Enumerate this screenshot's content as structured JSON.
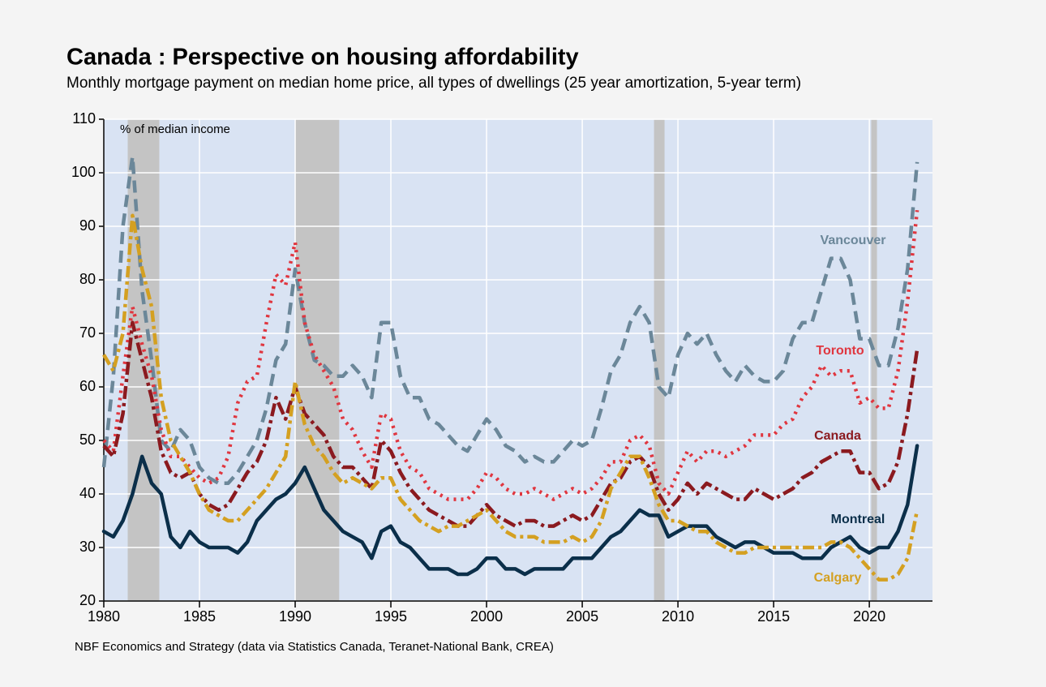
{
  "chart_data": {
    "type": "line",
    "title": "Canada : Perspective on housing affordability",
    "subtitle": "Monthly mortgage payment on median home price, all types of dwellings (25 year amortization, 5-year term)",
    "y_axis_label": "% of median income",
    "source": "NBF Economics and Strategy (data via Statistics Canada, Teranet-National Bank, CREA)",
    "xlim": [
      1980,
      2023.3
    ],
    "ylim": [
      20,
      110
    ],
    "xticks": [
      1980,
      1985,
      1990,
      1995,
      2000,
      2005,
      2010,
      2015,
      2020
    ],
    "yticks": [
      20,
      30,
      40,
      50,
      60,
      70,
      80,
      90,
      100,
      110
    ],
    "grid": true,
    "shaded_periods": [
      [
        1981.25,
        1982.9
      ],
      [
        1990.0,
        1992.3
      ],
      [
        2008.75,
        2009.3
      ],
      [
        2020.1,
        2020.4
      ]
    ],
    "x": [
      1980,
      1980.5,
      1981,
      1981.5,
      1982,
      1982.5,
      1983,
      1983.5,
      1984,
      1984.5,
      1985,
      1985.5,
      1986,
      1986.5,
      1987,
      1987.5,
      1988,
      1988.5,
      1989,
      1989.5,
      1990,
      1990.5,
      1991,
      1991.5,
      1992,
      1992.5,
      1993,
      1993.5,
      1994,
      1994.5,
      1995,
      1995.5,
      1996,
      1996.5,
      1997,
      1997.5,
      1998,
      1998.5,
      1999,
      1999.5,
      2000,
      2000.5,
      2001,
      2001.5,
      2002,
      2002.5,
      2003,
      2003.5,
      2004,
      2004.5,
      2005,
      2005.5,
      2006,
      2006.5,
      2007,
      2007.5,
      2008,
      2008.5,
      2009,
      2009.5,
      2010,
      2010.5,
      2011,
      2011.5,
      2012,
      2012.5,
      2013,
      2013.5,
      2014,
      2014.5,
      2015,
      2015.5,
      2016,
      2016.5,
      2017,
      2017.5,
      2018,
      2018.5,
      2019,
      2019.5,
      2020,
      2020.5,
      2021,
      2021.5,
      2022,
      2022.5
    ],
    "series": [
      {
        "name": "Vancouver",
        "color": "#6b8799",
        "values": [
          45,
          62,
          90,
          103,
          78,
          65,
          50,
          48,
          52,
          50,
          45,
          43,
          42,
          42,
          44,
          47,
          50,
          56,
          65,
          68,
          82,
          72,
          65,
          64,
          62,
          62,
          64,
          62,
          58,
          72,
          72,
          62,
          58,
          58,
          54,
          53,
          51,
          49,
          48,
          51,
          54,
          52,
          49,
          48,
          46,
          47,
          46,
          46,
          48,
          50,
          49,
          50,
          56,
          63,
          66,
          72,
          75,
          72,
          60,
          58,
          66,
          70,
          68,
          70,
          66,
          63,
          61,
          64,
          62,
          61,
          61,
          63,
          69,
          72,
          72,
          78,
          84,
          84,
          80,
          69,
          69,
          64,
          64,
          71,
          82,
          102
        ]
      },
      {
        "name": "Toronto",
        "color": "#e0363f",
        "values": [
          50,
          48,
          62,
          75,
          68,
          62,
          52,
          47,
          47,
          45,
          43,
          42,
          43,
          47,
          57,
          61,
          62,
          72,
          81,
          79,
          87,
          72,
          66,
          63,
          60,
          54,
          52,
          48,
          45,
          55,
          54,
          48,
          45,
          44,
          41,
          40,
          39,
          39,
          39,
          41,
          44,
          43,
          41,
          40,
          40,
          41,
          40,
          39,
          40,
          41,
          40,
          41,
          43,
          46,
          46,
          50,
          51,
          49,
          42,
          40,
          44,
          48,
          46,
          48,
          48,
          47,
          48,
          49,
          51,
          51,
          51,
          53,
          54,
          58,
          60,
          64,
          62,
          63,
          63,
          57,
          58,
          56,
          56,
          63,
          76,
          93
        ]
      },
      {
        "name": "Canada",
        "color": "#8b1a1f",
        "values": [
          49,
          47,
          55,
          72,
          65,
          58,
          48,
          44,
          43,
          44,
          40,
          38,
          37,
          38,
          41,
          44,
          46,
          50,
          58,
          54,
          60,
          55,
          53,
          51,
          47,
          45,
          45,
          43,
          41,
          50,
          48,
          44,
          41,
          39,
          37,
          36,
          35,
          34,
          34,
          36,
          38,
          36,
          35,
          34,
          35,
          35,
          34,
          34,
          35,
          36,
          35,
          36,
          39,
          42,
          43,
          46,
          47,
          45,
          40,
          37,
          39,
          42,
          40,
          42,
          41,
          40,
          39,
          39,
          41,
          40,
          39,
          40,
          41,
          43,
          44,
          46,
          47,
          48,
          48,
          44,
          44,
          41,
          42,
          46,
          55,
          67
        ]
      },
      {
        "name": "Montreal",
        "color": "#0b2f4a",
        "values": [
          33,
          32,
          35,
          40,
          47,
          42,
          40,
          32,
          30,
          33,
          31,
          30,
          30,
          30,
          29,
          31,
          35,
          37,
          39,
          40,
          42,
          45,
          41,
          37,
          35,
          33,
          32,
          31,
          28,
          33,
          34,
          31,
          30,
          28,
          26,
          26,
          26,
          25,
          25,
          26,
          28,
          28,
          26,
          26,
          25,
          26,
          26,
          26,
          26,
          28,
          28,
          28,
          30,
          32,
          33,
          35,
          37,
          36,
          36,
          32,
          33,
          34,
          34,
          34,
          32,
          31,
          30,
          31,
          31,
          30,
          29,
          29,
          29,
          28,
          28,
          28,
          30,
          31,
          32,
          30,
          29,
          30,
          30,
          33,
          38,
          49
        ]
      },
      {
        "name": "Calgary",
        "color": "#d4a021",
        "values": [
          66,
          63,
          70,
          92,
          82,
          75,
          58,
          50,
          47,
          44,
          40,
          37,
          36,
          35,
          35,
          37,
          39,
          41,
          44,
          47,
          61,
          53,
          49,
          47,
          44,
          42,
          43,
          42,
          41,
          43,
          43,
          39,
          37,
          35,
          34,
          33,
          34,
          34,
          35,
          36,
          37,
          35,
          33,
          32,
          32,
          32,
          31,
          31,
          31,
          32,
          31,
          32,
          35,
          41,
          44,
          47,
          47,
          43,
          38,
          35,
          35,
          34,
          33,
          33,
          31,
          30,
          29,
          29,
          30,
          30,
          30,
          30,
          30,
          30,
          30,
          30,
          31,
          31,
          30,
          28,
          26,
          24,
          24,
          25,
          28,
          37
        ]
      }
    ]
  }
}
